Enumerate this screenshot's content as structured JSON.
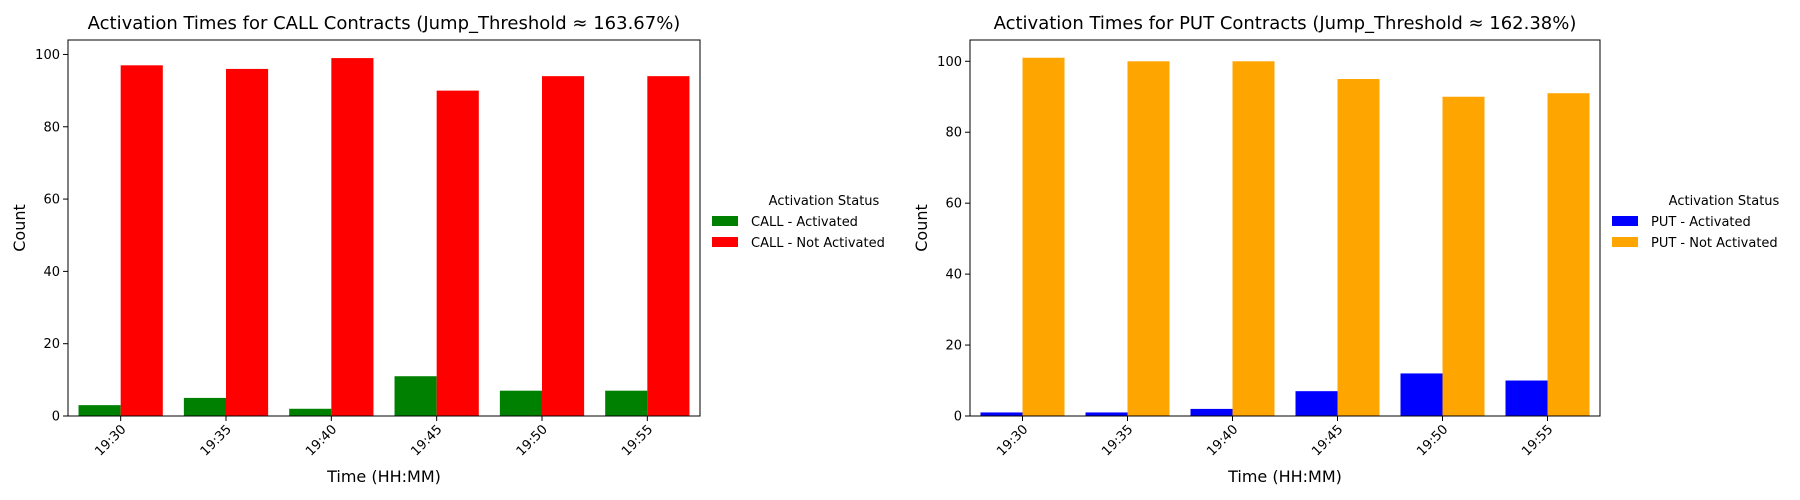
{
  "chart_data": [
    {
      "type": "bar",
      "title": "Activation Times for CALL Contracts (Jump_Threshold ≈ 163.67%)",
      "xlabel": "Time (HH:MM)",
      "ylabel": "Count",
      "categories": [
        "19:30",
        "19:35",
        "19:40",
        "19:45",
        "19:50",
        "19:55"
      ],
      "ylim": [
        0,
        104
      ],
      "yticks": [
        0,
        20,
        40,
        60,
        80,
        100
      ],
      "legend_title": "Activation Status",
      "series": [
        {
          "name": "CALL - Activated",
          "color": "#008000",
          "values": [
            3,
            5,
            2,
            11,
            7,
            7
          ]
        },
        {
          "name": "CALL - Not Activated",
          "color": "#ff0000",
          "values": [
            97,
            96,
            99,
            90,
            94,
            94
          ]
        }
      ]
    },
    {
      "type": "bar",
      "title": "Activation Times for PUT Contracts (Jump_Threshold ≈ 162.38%)",
      "xlabel": "Time (HH:MM)",
      "ylabel": "Count",
      "categories": [
        "19:30",
        "19:35",
        "19:40",
        "19:45",
        "19:50",
        "19:55"
      ],
      "ylim": [
        0,
        106
      ],
      "yticks": [
        0,
        20,
        40,
        60,
        80,
        100
      ],
      "legend_title": "Activation Status",
      "series": [
        {
          "name": "PUT - Activated",
          "color": "#0000ff",
          "values": [
            1,
            1,
            2,
            7,
            12,
            10
          ]
        },
        {
          "name": "PUT - Not Activated",
          "color": "#ffa500",
          "values": [
            101,
            100,
            100,
            95,
            90,
            91
          ]
        }
      ]
    }
  ]
}
